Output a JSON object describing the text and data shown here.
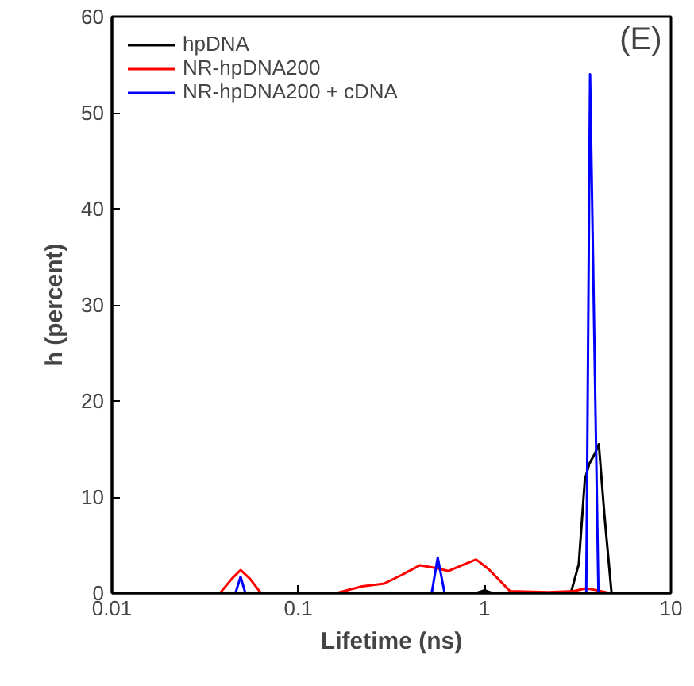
{
  "chart_data": {
    "type": "line",
    "xlabel": "Lifetime (ns)",
    "ylabel": "h (percent)",
    "annotations": [
      "(E)"
    ],
    "log": "x",
    "xlim": [
      0.01,
      10
    ],
    "xticks": [
      0.01,
      0.1,
      1,
      10
    ],
    "ylim": [
      0,
      60
    ],
    "yticks": [
      0,
      10,
      20,
      30,
      40,
      50,
      60
    ],
    "grid": false,
    "legend": "top left",
    "marker": "none",
    "line_style": "solid",
    "series": [
      {
        "name": "hpDNA",
        "color": "#000000",
        "x": [
          0.01,
          0.9,
          1.0,
          1.1,
          2.9,
          3.2,
          3.45,
          3.65,
          3.9,
          4.1,
          4.4,
          4.8,
          10
        ],
        "values": [
          0,
          0,
          0.3,
          0,
          0,
          3,
          11.8,
          13.5,
          14.5,
          15.5,
          8,
          0,
          0
        ]
      },
      {
        "name": "NR-hpDNA200",
        "color": "#ff0000",
        "x": [
          0.01,
          0.038,
          0.044,
          0.049,
          0.055,
          0.063,
          0.16,
          0.22,
          0.29,
          0.36,
          0.45,
          0.55,
          0.64,
          0.78,
          0.9,
          1.05,
          1.37,
          2.2,
          3.0,
          3.5,
          4.0,
          4.7,
          10
        ],
        "values": [
          0,
          0,
          1.5,
          2.4,
          1.5,
          0,
          0,
          0.7,
          1.0,
          1.9,
          2.9,
          2.6,
          2.3,
          3.0,
          3.5,
          2.5,
          0.2,
          0.1,
          0.2,
          0.5,
          0.3,
          0,
          0
        ]
      },
      {
        "name": "NR-hpDNA200 + cDNA",
        "color": "#0000ff",
        "x": [
          0.01,
          0.046,
          0.049,
          0.052,
          0.52,
          0.56,
          0.61,
          3.51,
          3.68,
          4.08,
          10
        ],
        "values": [
          0,
          0,
          1.7,
          0,
          0,
          3.7,
          0,
          0,
          54,
          0,
          0
        ]
      }
    ]
  }
}
